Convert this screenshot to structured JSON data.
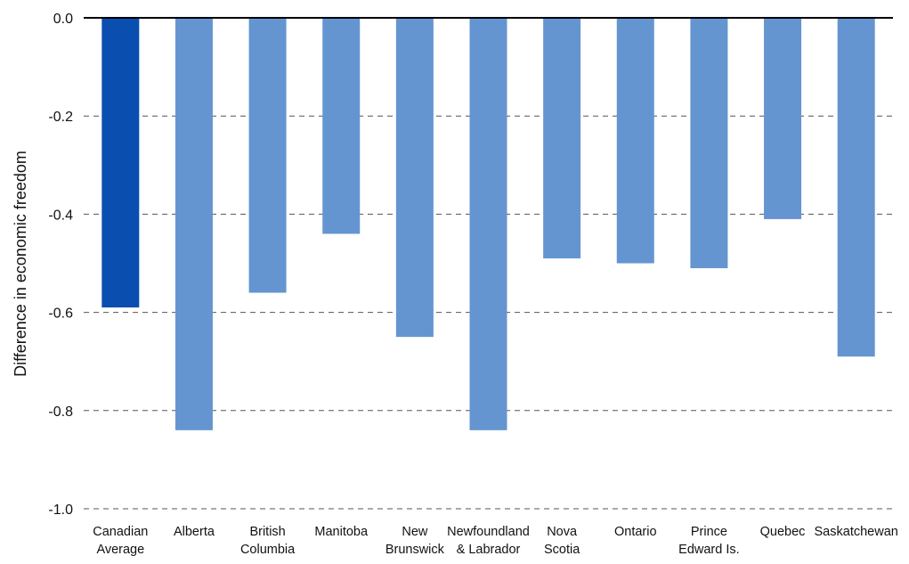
{
  "chart_data": {
    "type": "bar",
    "ylabel": "Difference in economic freedom",
    "xlabel": "",
    "ylim": [
      -1.0,
      0.0
    ],
    "yticks": [
      "0.0",
      "-0.2",
      "-0.4",
      "-0.6",
      "-0.8",
      "-1.0"
    ],
    "grid": "horizontal-dashed",
    "categories": [
      [
        "Canadian",
        "Average"
      ],
      [
        "Alberta"
      ],
      [
        "British",
        "Columbia"
      ],
      [
        "Manitoba"
      ],
      [
        "New",
        "Brunswick"
      ],
      [
        "Newfoundland",
        "& Labrador"
      ],
      [
        "Nova",
        "Scotia"
      ],
      [
        "Ontario"
      ],
      [
        "Prince",
        "Edward Is."
      ],
      [
        "Quebec"
      ],
      [
        "Saskatchewan"
      ]
    ],
    "values": [
      -0.59,
      -0.84,
      -0.56,
      -0.44,
      -0.65,
      -0.84,
      -0.49,
      -0.5,
      -0.51,
      -0.41,
      -0.69
    ],
    "colors": {
      "highlight": "#0a4fb0",
      "bar": "#6495d1",
      "grid": "#555555",
      "zero_line": "#000000"
    },
    "highlight_index": 0
  }
}
